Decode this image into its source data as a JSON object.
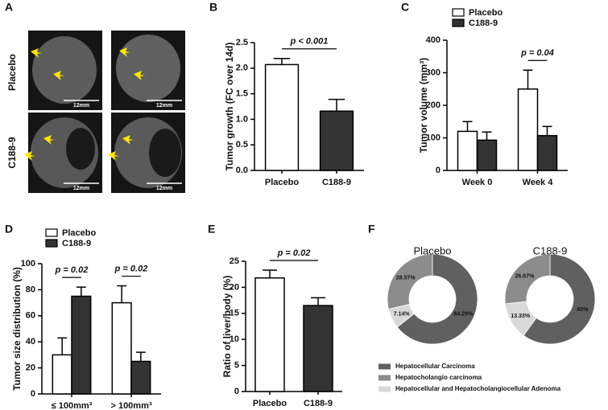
{
  "chart_data": [
    {
      "type": "image",
      "panel": "A",
      "row_labels": [
        "Placebo",
        "C188-9"
      ],
      "scale_label": "12mm"
    },
    {
      "type": "bar",
      "panel": "B",
      "ylabel": "Tumor growth (FC over 14d)",
      "categories": [
        "Placebo",
        "C188-9"
      ],
      "values": [
        2.07,
        1.16
      ],
      "errors": [
        0.12,
        0.23
      ],
      "colors": [
        "#ffffff",
        "#333333"
      ],
      "ylim": [
        0,
        2.5
      ],
      "yticks": [
        {
          "value": 0,
          "label": "0.0"
        },
        0.5,
        {
          "value": 1,
          "label": "1.0"
        },
        1.5,
        {
          "value": 2,
          "label": "2.0"
        },
        2.5
      ],
      "annotations": [
        "p < 0.001"
      ]
    },
    {
      "type": "grouped_bar",
      "panel": "C",
      "ylabel": "Tumor volume (mm³)",
      "categories": [
        "Week 0",
        "Week 4"
      ],
      "series": [
        {
          "name": "Placebo",
          "color": "#ffffff",
          "values": [
            120,
            250
          ],
          "errors": [
            30,
            58
          ]
        },
        {
          "name": "C188-9",
          "color": "#333333",
          "values": [
            93,
            107
          ],
          "errors": [
            25,
            28
          ]
        }
      ],
      "ylim": [
        0,
        400
      ],
      "yticks": [
        0,
        100,
        200,
        300,
        400
      ],
      "annotations": [
        "p = 0.04"
      ],
      "legend": "upper left"
    },
    {
      "type": "grouped_bar",
      "panel": "D",
      "ylabel": "Tumor size distribution (%)",
      "categories": [
        "≤ 100mm³",
        "> 100mm³"
      ],
      "series": [
        {
          "name": "Placebo",
          "color": "#ffffff",
          "values": [
            30,
            70
          ],
          "errors": [
            13,
            13
          ]
        },
        {
          "name": "C188-9",
          "color": "#333333",
          "values": [
            75,
            25
          ],
          "errors": [
            7,
            7
          ]
        }
      ],
      "ylim": [
        0,
        100
      ],
      "yticks": [
        0,
        20,
        40,
        60,
        80,
        100
      ],
      "annotations": [
        "p = 0.02",
        "p = 0.02"
      ],
      "legend": "upper left"
    },
    {
      "type": "bar",
      "panel": "E",
      "ylabel": "Ratio of liver/body (%)",
      "categories": [
        "Placebo",
        "C188-9"
      ],
      "values": [
        21.8,
        16.5
      ],
      "errors": [
        1.5,
        1.5
      ],
      "colors": [
        "#ffffff",
        "#333333"
      ],
      "ylim": [
        0,
        25
      ],
      "yticks": [
        0,
        5,
        10,
        15,
        20,
        25
      ],
      "annotations": [
        "p = 0.02"
      ]
    },
    {
      "type": "donut",
      "panel": "F",
      "categories": [
        "Hepatocellular Carcinoma",
        "Hepatocholangio carcinoma",
        "Hepatocellular and Hepatocholangiocellular Adenoma"
      ],
      "colors": [
        "#606060",
        "#8c8c8c",
        "#d9d9d9"
      ],
      "series": [
        {
          "name": "Placebo",
          "values": [
            64.29,
            28.57,
            7.14
          ],
          "value_labels": [
            "64.29%",
            "28.57%",
            "7.14%"
          ]
        },
        {
          "name": "C188-9",
          "values": [
            60,
            26.67,
            13.33
          ],
          "value_labels": [
            "60%",
            "26.67%",
            "13.33%"
          ]
        }
      ]
    }
  ]
}
